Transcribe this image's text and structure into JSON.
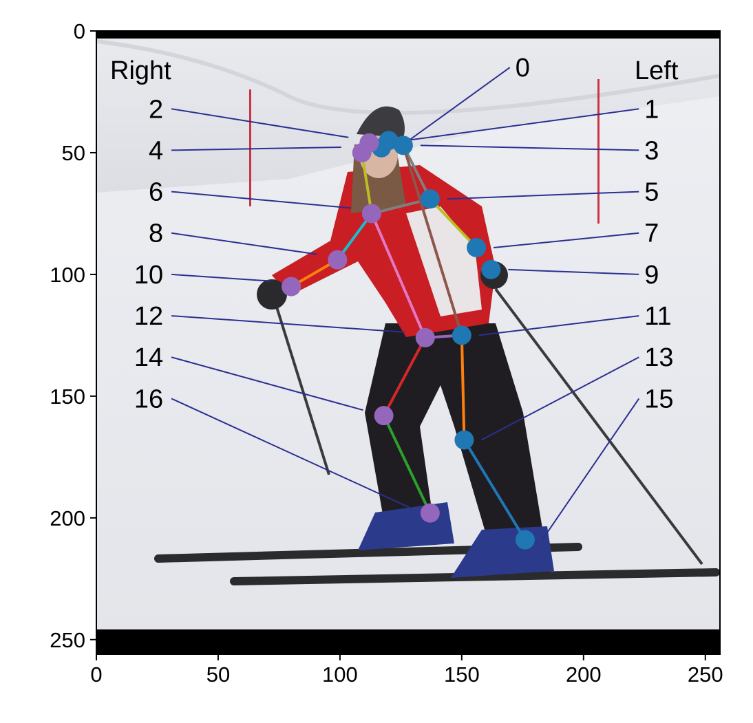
{
  "chart_data": {
    "type": "scatter",
    "title": "",
    "xlabel": "",
    "ylabel": "",
    "xlim": [
      0,
      256
    ],
    "ylim": [
      256,
      0
    ],
    "xticks": [
      0,
      50,
      100,
      150,
      200,
      250
    ],
    "yticks": [
      0,
      50,
      100,
      150,
      200,
      250
    ],
    "xtick_labels": [
      "0",
      "50",
      "100",
      "150",
      "200",
      "250"
    ],
    "ytick_labels": [
      "0",
      "50",
      "100",
      "150",
      "200",
      "250"
    ],
    "side_labels": {
      "right": "Right",
      "left": "Left"
    },
    "image_region": {
      "y_from": 3,
      "y_to": 246
    },
    "keypoints": [
      {
        "id": "0",
        "x": 117,
        "y": 48,
        "side": "left",
        "color": "#1f77b4"
      },
      {
        "id": "1",
        "x": 120,
        "y": 45,
        "side": "left",
        "color": "#1f77b4"
      },
      {
        "id": "2",
        "x": 112,
        "y": 46,
        "side": "right",
        "color": "#9467bd"
      },
      {
        "id": "3",
        "x": 126,
        "y": 47,
        "side": "left",
        "color": "#1f77b4"
      },
      {
        "id": "4",
        "x": 109,
        "y": 50,
        "side": "right",
        "color": "#9467bd"
      },
      {
        "id": "5",
        "x": 137,
        "y": 69,
        "side": "left",
        "color": "#1f77b4"
      },
      {
        "id": "6",
        "x": 113,
        "y": 75,
        "side": "right",
        "color": "#9467bd"
      },
      {
        "id": "7",
        "x": 156,
        "y": 89,
        "side": "left",
        "color": "#1f77b4"
      },
      {
        "id": "8",
        "x": 99,
        "y": 94,
        "side": "right",
        "color": "#9467bd"
      },
      {
        "id": "9",
        "x": 162,
        "y": 98,
        "side": "left",
        "color": "#1f77b4"
      },
      {
        "id": "10",
        "x": 80,
        "y": 105,
        "side": "right",
        "color": "#9467bd"
      },
      {
        "id": "11",
        "x": 150,
        "y": 125,
        "side": "left",
        "color": "#1f77b4"
      },
      {
        "id": "12",
        "x": 135,
        "y": 126,
        "side": "right",
        "color": "#9467bd"
      },
      {
        "id": "13",
        "x": 151,
        "y": 168,
        "side": "left",
        "color": "#1f77b4"
      },
      {
        "id": "14",
        "x": 118,
        "y": 158,
        "side": "right",
        "color": "#9467bd"
      },
      {
        "id": "15",
        "x": 176,
        "y": 209,
        "side": "left",
        "color": "#1f77b4"
      },
      {
        "id": "16",
        "x": 137,
        "y": 198,
        "side": "right",
        "color": "#9467bd"
      }
    ],
    "limbs": [
      {
        "from": "0",
        "to": "1",
        "color": "#2ca02c"
      },
      {
        "from": "0",
        "to": "2",
        "color": "#d62728"
      },
      {
        "from": "1",
        "to": "3",
        "color": "#9467bd"
      },
      {
        "from": "2",
        "to": "4",
        "color": "#e377c2"
      },
      {
        "from": "3",
        "to": "5",
        "color": "#7f7f7f"
      },
      {
        "from": "4",
        "to": "6",
        "color": "#bcbd22"
      },
      {
        "from": "5",
        "to": "7",
        "color": "#bcbd22"
      },
      {
        "from": "6",
        "to": "8",
        "color": "#17becf"
      },
      {
        "from": "5",
        "to": "6",
        "color": "#7f7f7f"
      },
      {
        "from": "8",
        "to": "10",
        "color": "#ff7f0e"
      },
      {
        "from": "3",
        "to": "11",
        "color": "#8c564b"
      },
      {
        "from": "6",
        "to": "12",
        "color": "#e377c2"
      },
      {
        "from": "11",
        "to": "12",
        "color": "#9467bd"
      },
      {
        "from": "11",
        "to": "13",
        "color": "#ff7f0e"
      },
      {
        "from": "12",
        "to": "14",
        "color": "#d62728"
      },
      {
        "from": "13",
        "to": "15",
        "color": "#1f77b4"
      },
      {
        "from": "14",
        "to": "16",
        "color": "#2ca02c"
      }
    ],
    "label_anchors": [
      {
        "id": "0",
        "x": 172,
        "y": 15
      },
      {
        "id": "1",
        "x": 225,
        "y": 32
      },
      {
        "id": "2",
        "x": 28,
        "y": 32
      },
      {
        "id": "3",
        "x": 225,
        "y": 49
      },
      {
        "id": "4",
        "x": 28,
        "y": 49
      },
      {
        "id": "5",
        "x": 225,
        "y": 66
      },
      {
        "id": "6",
        "x": 28,
        "y": 66
      },
      {
        "id": "7",
        "x": 225,
        "y": 83
      },
      {
        "id": "8",
        "x": 28,
        "y": 83
      },
      {
        "id": "9",
        "x": 225,
        "y": 100
      },
      {
        "id": "10",
        "x": 28,
        "y": 100
      },
      {
        "id": "11",
        "x": 225,
        "y": 117
      },
      {
        "id": "12",
        "x": 28,
        "y": 117
      },
      {
        "id": "13",
        "x": 225,
        "y": 134
      },
      {
        "id": "14",
        "x": 28,
        "y": 134
      },
      {
        "id": "15",
        "x": 225,
        "y": 151
      },
      {
        "id": "16",
        "x": 28,
        "y": 151
      }
    ],
    "leader_color": "#2b2f8f",
    "colors": {
      "left_keypoint": "#1f77b4",
      "right_keypoint": "#9467bd",
      "leader": "#2b2f8f",
      "letterbox": "#000000"
    }
  }
}
